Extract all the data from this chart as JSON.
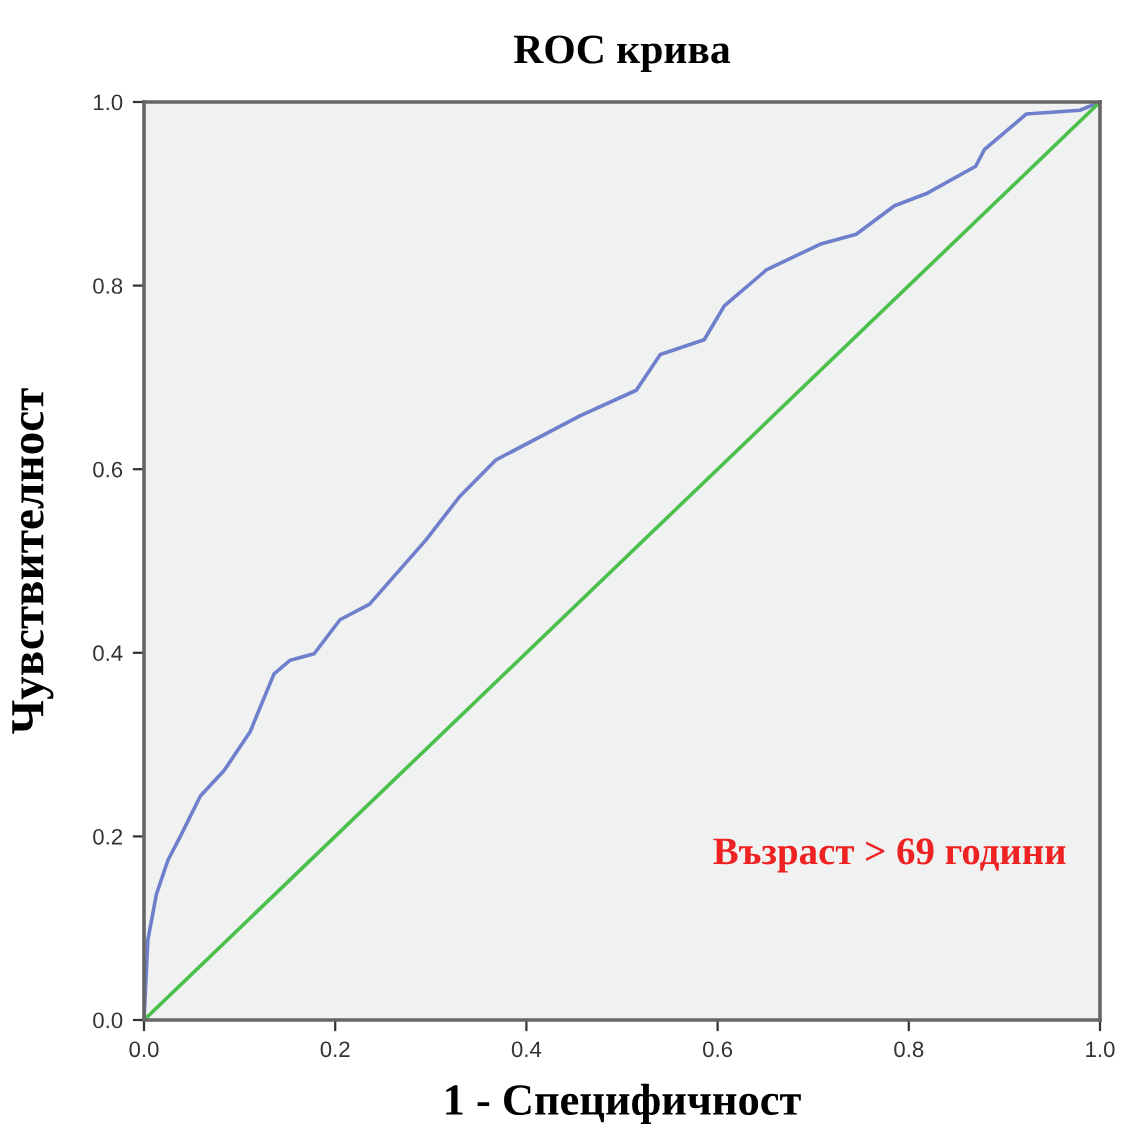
{
  "chart_data": {
    "type": "line",
    "title": "ROC крива",
    "xlabel": "1 - Специфичност",
    "ylabel": "Чувствителност",
    "annotations": [
      "Възраст > 69 години"
    ],
    "series": [
      {
        "x": [
          0,
          0.004,
          0.013,
          0.025,
          0.038,
          0.059,
          0.084,
          0.111,
          0.136,
          0.153,
          0.178,
          0.205,
          0.236,
          0.295,
          0.33,
          0.368,
          0.456,
          0.515,
          0.54,
          0.586,
          0.607,
          0.651,
          0.707,
          0.745,
          0.785,
          0.818,
          0.87,
          0.879,
          0.923,
          0.979,
          1
        ],
        "values": [
          0,
          0.087,
          0.137,
          0.174,
          0.2,
          0.244,
          0.272,
          0.314,
          0.377,
          0.392,
          0.399,
          0.436,
          0.453,
          0.523,
          0.57,
          0.61,
          0.658,
          0.686,
          0.725,
          0.741,
          0.778,
          0.817,
          0.845,
          0.856,
          0.887,
          0.9,
          0.93,
          0.948,
          0.987,
          0.991,
          1
        ],
        "color": "#6f7fcb"
      },
      {
        "x": [
          0,
          1
        ],
        "values": [
          0,
          1
        ],
        "color": "#4cc04c"
      }
    ],
    "xlim": [
      0,
      1
    ],
    "ylim": [
      0,
      1
    ],
    "xticks": [
      {
        "value": 0,
        "label": "0.0"
      },
      0.2,
      0.4,
      0.6,
      0.8,
      {
        "value": 1,
        "label": "1.0"
      }
    ],
    "yticks": [
      {
        "value": 0,
        "label": "0.0"
      },
      0.2,
      0.4,
      0.6,
      0.8,
      {
        "value": 1,
        "label": "1.0"
      }
    ],
    "grid": false,
    "legend": false
  }
}
